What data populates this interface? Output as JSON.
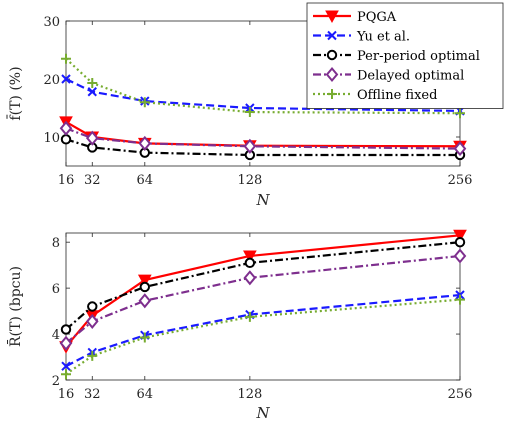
{
  "chart_data": [
    {
      "type": "line",
      "xlabel": "N",
      "ylabel": "f̄(T) (%)",
      "x": [
        16,
        32,
        64,
        128,
        256
      ],
      "xticks": [
        "16",
        "32",
        "64",
        "128",
        "256"
      ],
      "xlim": [
        16,
        256
      ],
      "ylim": [
        5,
        30
      ],
      "yticks": [
        "10",
        "20",
        "30"
      ],
      "ytick_values": [
        10,
        20,
        30
      ],
      "grid": false,
      "legend_position": "top-right",
      "series": [
        {
          "name": "PQGA",
          "values": [
            12.6,
            10.0,
            8.9,
            8.5,
            8.4
          ],
          "color": "#ff0000",
          "dash": "solid",
          "marker": "triangle-down"
        },
        {
          "name": "Yu et al.",
          "values": [
            20.0,
            17.8,
            16.2,
            15.0,
            14.5
          ],
          "color": "#1a1aff",
          "dash": "dashed",
          "marker": "x"
        },
        {
          "name": "Per-period optimal",
          "values": [
            9.6,
            8.2,
            7.3,
            6.9,
            6.9
          ],
          "color": "#000000",
          "dash": "dashdot",
          "marker": "circle"
        },
        {
          "name": "Delayed optimal",
          "values": [
            11.5,
            9.8,
            8.9,
            8.4,
            8.0
          ],
          "color": "#7e2f8e",
          "dash": "dashdot",
          "marker": "diamond"
        },
        {
          "name": "Offline fixed",
          "values": [
            23.5,
            19.3,
            16.0,
            14.3,
            14.1
          ],
          "color": "#77ac30",
          "dash": "dotted",
          "marker": "plus"
        }
      ]
    },
    {
      "type": "line",
      "xlabel": "N",
      "ylabel": "R̄(T) (bpcu)",
      "x": [
        16,
        32,
        64,
        128,
        256
      ],
      "xticks": [
        "16",
        "32",
        "64",
        "128",
        "256"
      ],
      "xlim": [
        16,
        256
      ],
      "ylim": [
        2,
        8.4
      ],
      "yticks": [
        "2",
        "4",
        "6",
        "8"
      ],
      "ytick_values": [
        2,
        4,
        6,
        8
      ],
      "grid": false,
      "series": [
        {
          "name": "PQGA",
          "values": [
            3.45,
            4.8,
            6.35,
            7.4,
            8.3
          ],
          "color": "#ff0000",
          "dash": "solid",
          "marker": "triangle-down"
        },
        {
          "name": "Yu et al.",
          "values": [
            2.6,
            3.2,
            3.95,
            4.85,
            5.7
          ],
          "color": "#1a1aff",
          "dash": "dashed",
          "marker": "x"
        },
        {
          "name": "Per-period optimal",
          "values": [
            4.2,
            5.2,
            6.05,
            7.1,
            8.0
          ],
          "color": "#000000",
          "dash": "dashdot",
          "marker": "circle"
        },
        {
          "name": "Delayed optimal",
          "values": [
            3.6,
            4.55,
            5.45,
            6.45,
            7.4
          ],
          "color": "#7e2f8e",
          "dash": "dashdot",
          "marker": "diamond"
        },
        {
          "name": "Offline fixed",
          "values": [
            2.25,
            3.05,
            3.85,
            4.75,
            5.5
          ],
          "color": "#77ac30",
          "dash": "dotted",
          "marker": "plus"
        }
      ]
    }
  ]
}
